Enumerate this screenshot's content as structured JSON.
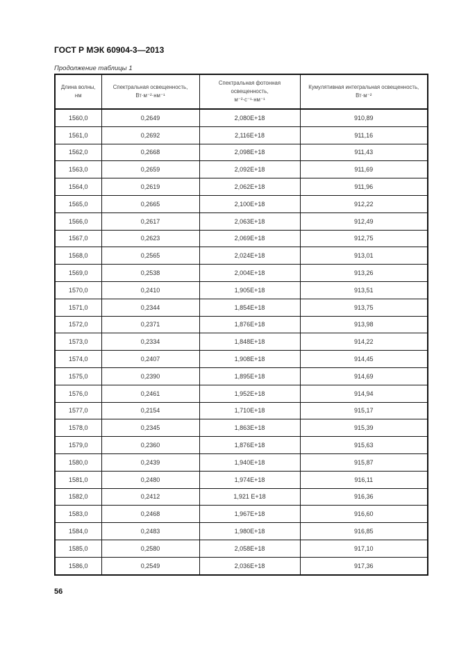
{
  "header": {
    "title": "ГОСТ Р МЭК 60904-3—2013"
  },
  "table": {
    "caption": "Продолжение таблицы 1",
    "columns": [
      {
        "label": "Длина волны,",
        "unit": "нм"
      },
      {
        "label": "Спектральная освещенность,",
        "unit": "Вт·м⁻²·нм⁻¹"
      },
      {
        "label": "Спектральная фотонная освещенность,",
        "unit": "м⁻²·с⁻¹·нм⁻¹"
      },
      {
        "label": "Кумулятивная интегральная освещенность,",
        "unit": "Вт·м⁻²"
      }
    ],
    "rows": [
      [
        "1560,0",
        "0,2649",
        "2,080E+18",
        "910,89"
      ],
      [
        "1561,0",
        "0,2692",
        "2,116E+18",
        "911,16"
      ],
      [
        "1562,0",
        "0,2668",
        "2,098E+18",
        "911,43"
      ],
      [
        "1563,0",
        "0,2659",
        "2,092E+18",
        "911,69"
      ],
      [
        "1564,0",
        "0,2619",
        "2,062E+18",
        "911,96"
      ],
      [
        "1565,0",
        "0,2665",
        "2,100E+18",
        "912,22"
      ],
      [
        "1566,0",
        "0,2617",
        "2,063E+18",
        "912,49"
      ],
      [
        "1567,0",
        "0,2623",
        "2,069E+18",
        "912,75"
      ],
      [
        "1568,0",
        "0,2565",
        "2,024E+18",
        "913,01"
      ],
      [
        "1569,0",
        "0,2538",
        "2,004E+18",
        "913,26"
      ],
      [
        "1570,0",
        "0,2410",
        "1,905E+18",
        "913,51"
      ],
      [
        "1571,0",
        "0,2344",
        "1,854E+18",
        "913,75"
      ],
      [
        "1572,0",
        "0,2371",
        "1,876E+18",
        "913,98"
      ],
      [
        "1573,0",
        "0,2334",
        "1,848E+18",
        "914,22"
      ],
      [
        "1574,0",
        "0,2407",
        "1,908E+18",
        "914,45"
      ],
      [
        "1575,0",
        "0,2390",
        "1,895E+18",
        "914,69"
      ],
      [
        "1576,0",
        "0,2461",
        "1,952E+18",
        "914,94"
      ],
      [
        "1577,0",
        "0,2154",
        "1,710E+18",
        "915,17"
      ],
      [
        "1578,0",
        "0,2345",
        "1,863E+18",
        "915,39"
      ],
      [
        "1579,0",
        "0,2360",
        "1,876E+18",
        "915,63"
      ],
      [
        "1580,0",
        "0,2439",
        "1,940E+18",
        "915,87"
      ],
      [
        "1581,0",
        "0,2480",
        "1,974E+18",
        "916,11"
      ],
      [
        "1582,0",
        "0,2412",
        "1,921 E+18",
        "916,36"
      ],
      [
        "1583,0",
        "0,2468",
        "1,967E+18",
        "916,60"
      ],
      [
        "1584,0",
        "0,2483",
        "1,980E+18",
        "916,85"
      ],
      [
        "1585,0",
        "0,2580",
        "2,058E+18",
        "917,10"
      ],
      [
        "1586,0",
        "0,2549",
        "2,036E+18",
        "917,36"
      ]
    ]
  },
  "footer": {
    "page_number": "56"
  }
}
